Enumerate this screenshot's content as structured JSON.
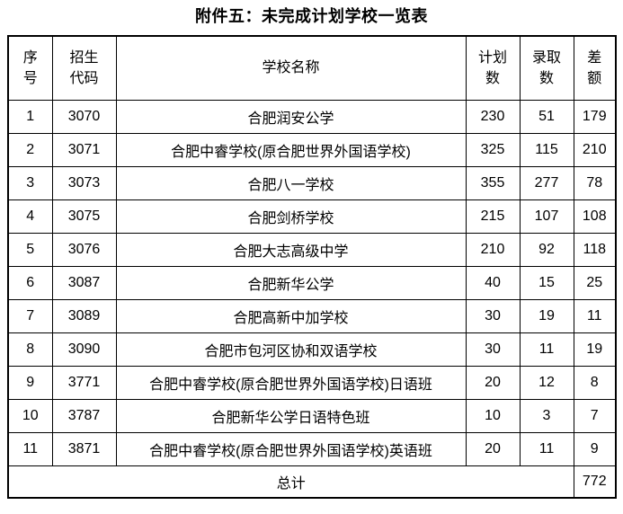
{
  "title": "附件五：未完成计划学校一览表",
  "table": {
    "headers": [
      "序\n号",
      "招生\n代码",
      "学校名称",
      "计划\n数",
      "录取\n数",
      "差\n额"
    ],
    "rows": [
      [
        "1",
        "3070",
        "合肥润安公学",
        "230",
        "51",
        "179"
      ],
      [
        "2",
        "3071",
        "合肥中睿学校(原合肥世界外国语学校)",
        "325",
        "115",
        "210"
      ],
      [
        "3",
        "3073",
        "合肥八一学校",
        "355",
        "277",
        "78"
      ],
      [
        "4",
        "3075",
        "合肥剑桥学校",
        "215",
        "107",
        "108"
      ],
      [
        "5",
        "3076",
        "合肥大志高级中学",
        "210",
        "92",
        "118"
      ],
      [
        "6",
        "3087",
        "合肥新华公学",
        "40",
        "15",
        "25"
      ],
      [
        "7",
        "3089",
        "合肥高新中加学校",
        "30",
        "19",
        "11"
      ],
      [
        "8",
        "3090",
        "合肥市包河区协和双语学校",
        "30",
        "11",
        "19"
      ],
      [
        "9",
        "3771",
        "合肥中睿学校(原合肥世界外国语学校)日语班",
        "20",
        "12",
        "8"
      ],
      [
        "10",
        "3787",
        "合肥新华公学日语特色班",
        "10",
        "3",
        "7"
      ],
      [
        "11",
        "3871",
        "合肥中睿学校(原合肥世界外国语学校)英语班",
        "20",
        "11",
        "9"
      ]
    ],
    "total_label": "总计",
    "total_value": "772"
  },
  "colors": {
    "text": "#000000",
    "border": "#000000",
    "background": "#ffffff"
  }
}
